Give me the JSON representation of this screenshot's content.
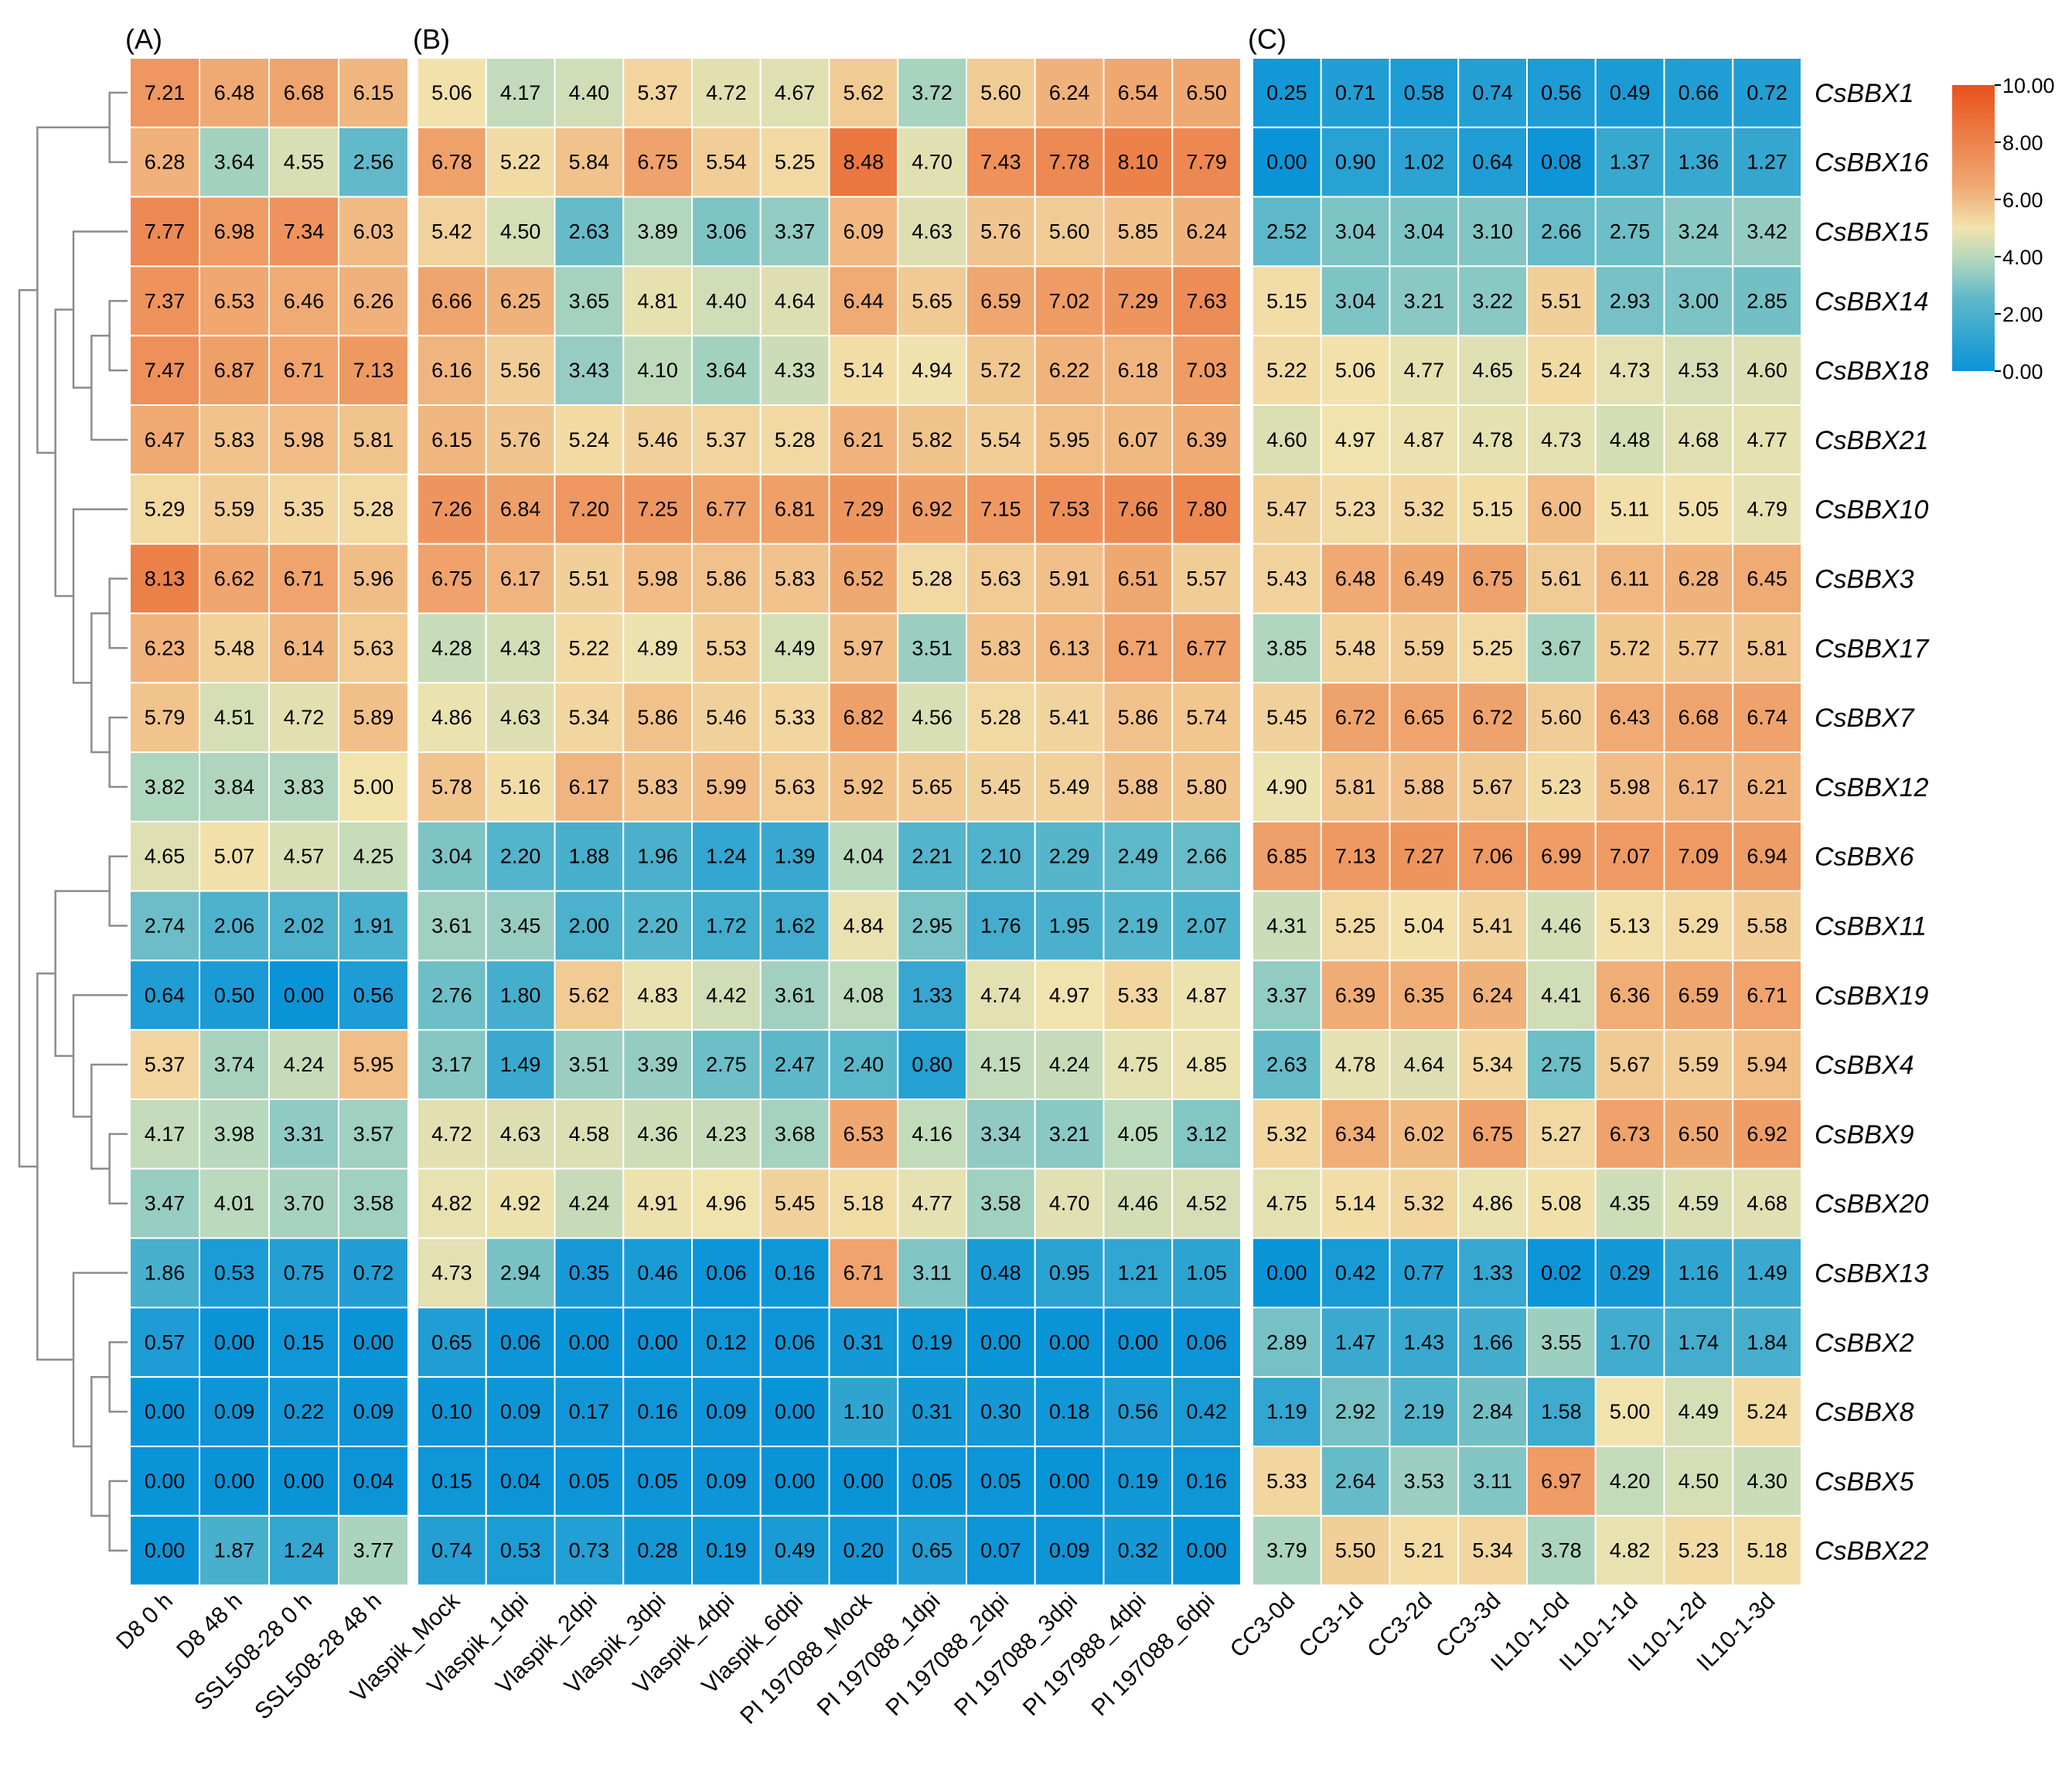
{
  "chart_data": {
    "type": "heatmap",
    "genes": [
      "CsBBX1",
      "CsBBX16",
      "CsBBX15",
      "CsBBX14",
      "CsBBX18",
      "CsBBX21",
      "CsBBX10",
      "CsBBX3",
      "CsBBX17",
      "CsBBX7",
      "CsBBX12",
      "CsBBX6",
      "CsBBX11",
      "CsBBX19",
      "CsBBX4",
      "CsBBX9",
      "CsBBX20",
      "CsBBX13",
      "CsBBX2",
      "CsBBX8",
      "CsBBX5",
      "CsBBX22"
    ],
    "panels": [
      {
        "label": "(A)",
        "columns": [
          "D8 0 h",
          "D8 48 h",
          "SSL508-28 0 h",
          "SSL508-28 48 h"
        ],
        "values": [
          [
            7.21,
            6.48,
            6.68,
            6.15
          ],
          [
            6.28,
            3.64,
            4.55,
            2.56
          ],
          [
            7.77,
            6.98,
            7.34,
            6.03
          ],
          [
            7.37,
            6.53,
            6.46,
            6.26
          ],
          [
            7.47,
            6.87,
            6.71,
            7.13
          ],
          [
            6.47,
            5.83,
            5.98,
            5.81
          ],
          [
            5.29,
            5.59,
            5.35,
            5.28
          ],
          [
            8.13,
            6.62,
            6.71,
            5.96
          ],
          [
            6.23,
            5.48,
            6.14,
            5.63
          ],
          [
            5.79,
            4.51,
            4.72,
            5.89
          ],
          [
            3.82,
            3.84,
            3.83,
            5.0
          ],
          [
            4.65,
            5.07,
            4.57,
            4.25
          ],
          [
            2.74,
            2.06,
            2.02,
            1.91
          ],
          [
            0.64,
            0.5,
            0.0,
            0.56
          ],
          [
            5.37,
            3.74,
            4.24,
            5.95
          ],
          [
            4.17,
            3.98,
            3.31,
            3.57
          ],
          [
            3.47,
            4.01,
            3.7,
            3.58
          ],
          [
            1.86,
            0.53,
            0.75,
            0.72
          ],
          [
            0.57,
            0.0,
            0.15,
            0.0
          ],
          [
            0.0,
            0.09,
            0.22,
            0.09
          ],
          [
            0.0,
            0.0,
            0.0,
            0.04
          ],
          [
            0.0,
            1.87,
            1.24,
            3.77
          ]
        ]
      },
      {
        "label": "(B)",
        "columns": [
          "Vlaspik_Mock",
          "Vlaspik_1dpi",
          "Vlaspik_2dpi",
          "Vlaspik_3dpi",
          "Vlaspik_4dpi",
          "Vlaspik_6dpi",
          "PI 197088_Mock",
          "PI 197088_1dpi",
          "PI 197088_2dpi",
          "PI 197088_3dpi",
          "PI 197988_4dpi",
          "PI 197088_6dpi"
        ],
        "values": [
          [
            5.06,
            4.17,
            4.4,
            5.37,
            4.72,
            4.67,
            5.62,
            3.72,
            5.6,
            6.24,
            6.54,
            6.5
          ],
          [
            6.78,
            5.22,
            5.84,
            6.75,
            5.54,
            5.25,
            8.48,
            4.7,
            7.43,
            7.78,
            8.1,
            7.79
          ],
          [
            5.42,
            4.5,
            2.63,
            3.89,
            3.06,
            3.37,
            6.09,
            4.63,
            5.76,
            5.6,
            5.85,
            6.24
          ],
          [
            6.66,
            6.25,
            3.65,
            4.81,
            4.4,
            4.64,
            6.44,
            5.65,
            6.59,
            7.02,
            7.29,
            7.63
          ],
          [
            6.16,
            5.56,
            3.43,
            4.1,
            3.64,
            4.33,
            5.14,
            4.94,
            5.72,
            6.22,
            6.18,
            7.03
          ],
          [
            6.15,
            5.76,
            5.24,
            5.46,
            5.37,
            5.28,
            6.21,
            5.82,
            5.54,
            5.95,
            6.07,
            6.39
          ],
          [
            7.26,
            6.84,
            7.2,
            7.25,
            6.77,
            6.81,
            7.29,
            6.92,
            7.15,
            7.53,
            7.66,
            7.8
          ],
          [
            6.75,
            6.17,
            5.51,
            5.98,
            5.86,
            5.83,
            6.52,
            5.28,
            5.63,
            5.91,
            6.51,
            5.57
          ],
          [
            4.28,
            4.43,
            5.22,
            4.89,
            5.53,
            4.49,
            5.97,
            3.51,
            5.83,
            6.13,
            6.71,
            6.77
          ],
          [
            4.86,
            4.63,
            5.34,
            5.86,
            5.46,
            5.33,
            6.82,
            4.56,
            5.28,
            5.41,
            5.86,
            5.74
          ],
          [
            5.78,
            5.16,
            6.17,
            5.83,
            5.99,
            5.63,
            5.92,
            5.65,
            5.45,
            5.49,
            5.88,
            5.8
          ],
          [
            3.04,
            2.2,
            1.88,
            1.96,
            1.24,
            1.39,
            4.04,
            2.21,
            2.1,
            2.29,
            2.49,
            2.66
          ],
          [
            3.61,
            3.45,
            2.0,
            2.2,
            1.72,
            1.62,
            4.84,
            2.95,
            1.76,
            1.95,
            2.19,
            2.07
          ],
          [
            2.76,
            1.8,
            5.62,
            4.83,
            4.42,
            3.61,
            4.08,
            1.33,
            4.74,
            4.97,
            5.33,
            4.87
          ],
          [
            3.17,
            1.49,
            3.51,
            3.39,
            2.75,
            2.47,
            2.4,
            0.8,
            4.15,
            4.24,
            4.75,
            4.85
          ],
          [
            4.72,
            4.63,
            4.58,
            4.36,
            4.23,
            3.68,
            6.53,
            4.16,
            3.34,
            3.21,
            4.05,
            3.12
          ],
          [
            4.82,
            4.92,
            4.24,
            4.91,
            4.96,
            5.45,
            5.18,
            4.77,
            3.58,
            4.7,
            4.46,
            4.52
          ],
          [
            4.73,
            2.94,
            0.35,
            0.46,
            0.06,
            0.16,
            6.71,
            3.11,
            0.48,
            0.95,
            1.21,
            1.05
          ],
          [
            0.65,
            0.06,
            0.0,
            0.0,
            0.12,
            0.06,
            0.31,
            0.19,
            0.0,
            0.0,
            0.0,
            0.06
          ],
          [
            0.1,
            0.09,
            0.17,
            0.16,
            0.09,
            0.0,
            1.1,
            0.31,
            0.3,
            0.18,
            0.56,
            0.42
          ],
          [
            0.15,
            0.04,
            0.05,
            0.05,
            0.09,
            0.0,
            0.0,
            0.05,
            0.05,
            0.0,
            0.19,
            0.16
          ],
          [
            0.74,
            0.53,
            0.73,
            0.28,
            0.19,
            0.49,
            0.2,
            0.65,
            0.07,
            0.09,
            0.32,
            0.0
          ]
        ]
      },
      {
        "label": "(C)",
        "columns": [
          "CC3-0d",
          "CC3-1d",
          "CC3-2d",
          "CC3-3d",
          "IL10-1-0d",
          "IL10-1-1d",
          "IL10-1-2d",
          "IL10-1-3d"
        ],
        "values": [
          [
            0.25,
            0.71,
            0.58,
            0.74,
            0.56,
            0.49,
            0.66,
            0.72
          ],
          [
            0.0,
            0.9,
            1.02,
            0.64,
            0.08,
            1.37,
            1.36,
            1.27
          ],
          [
            2.52,
            3.04,
            3.04,
            3.1,
            2.66,
            2.75,
            3.24,
            3.42
          ],
          [
            5.15,
            3.04,
            3.21,
            3.22,
            5.51,
            2.93,
            3.0,
            2.85
          ],
          [
            5.22,
            5.06,
            4.77,
            4.65,
            5.24,
            4.73,
            4.53,
            4.6
          ],
          [
            4.6,
            4.97,
            4.87,
            4.78,
            4.73,
            4.48,
            4.68,
            4.77
          ],
          [
            5.47,
            5.23,
            5.32,
            5.15,
            6.0,
            5.11,
            5.05,
            4.79
          ],
          [
            5.43,
            6.48,
            6.49,
            6.75,
            5.61,
            6.11,
            6.28,
            6.45
          ],
          [
            3.85,
            5.48,
            5.59,
            5.25,
            3.67,
            5.72,
            5.77,
            5.81
          ],
          [
            5.45,
            6.72,
            6.65,
            6.72,
            5.6,
            6.43,
            6.68,
            6.74
          ],
          [
            4.9,
            5.81,
            5.88,
            5.67,
            5.23,
            5.98,
            6.17,
            6.21
          ],
          [
            6.85,
            7.13,
            7.27,
            7.06,
            6.99,
            7.07,
            7.09,
            6.94
          ],
          [
            4.31,
            5.25,
            5.04,
            5.41,
            4.46,
            5.13,
            5.29,
            5.58
          ],
          [
            3.37,
            6.39,
            6.35,
            6.24,
            4.41,
            6.36,
            6.59,
            6.71
          ],
          [
            2.63,
            4.78,
            4.64,
            5.34,
            2.75,
            5.67,
            5.59,
            5.94
          ],
          [
            5.32,
            6.34,
            6.02,
            6.75,
            5.27,
            6.73,
            6.5,
            6.92
          ],
          [
            4.75,
            5.14,
            5.32,
            4.86,
            5.08,
            4.35,
            4.59,
            4.68
          ],
          [
            0.0,
            0.42,
            0.77,
            1.33,
            0.02,
            0.29,
            1.16,
            1.49
          ],
          [
            2.89,
            1.47,
            1.43,
            1.66,
            3.55,
            1.7,
            1.74,
            1.84
          ],
          [
            1.19,
            2.92,
            2.19,
            2.84,
            1.58,
            5.0,
            4.49,
            5.24
          ],
          [
            5.33,
            2.64,
            3.53,
            3.11,
            6.97,
            4.2,
            4.5,
            4.3
          ],
          [
            3.79,
            5.5,
            5.21,
            5.34,
            3.78,
            4.82,
            5.23,
            5.18
          ]
        ]
      }
    ],
    "color_scale": {
      "min": 0,
      "max": 10,
      "ticks": [
        "10.00",
        "8.00",
        "6.00",
        "4.00",
        "2.00",
        "0.00"
      ],
      "stops": [
        {
          "value": 0,
          "color": "#0a94d8"
        },
        {
          "value": 2.5,
          "color": "#5db8c9"
        },
        {
          "value": 4,
          "color": "#b9d9bd"
        },
        {
          "value": 5,
          "color": "#f2e3ad"
        },
        {
          "value": 6.5,
          "color": "#f0a871"
        },
        {
          "value": 10,
          "color": "#e8521c"
        }
      ]
    },
    "legend_position": "top-right",
    "dendrogram": "left"
  }
}
